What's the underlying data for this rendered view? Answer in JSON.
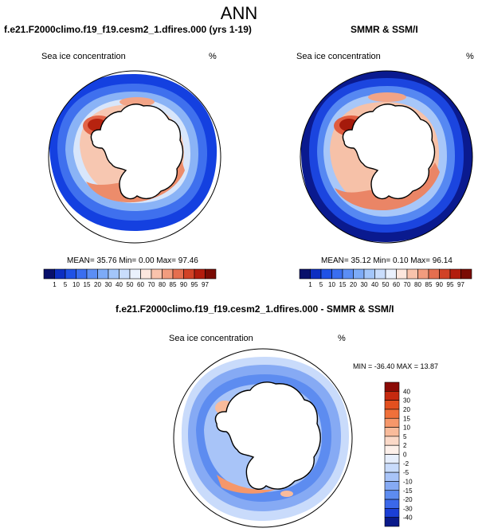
{
  "page": {
    "title": "ANN"
  },
  "panels": {
    "model": {
      "title": "f.e21.F2000climo.f19_f19.cesm2_1.dfires.000 (yrs 1-19)",
      "variable": "Sea ice concentration",
      "units": "%",
      "stats": "MEAN= 35.76  Min=  0.00  Max= 97.46"
    },
    "obs": {
      "title": "SMMR & SSM/I",
      "variable": "Sea ice concentration",
      "units": "%",
      "stats": "MEAN= 35.12  Min=  0.10  Max= 96.14"
    },
    "diff": {
      "title": "f.e21.F2000climo.f19_f19.cesm2_1.dfires.000 - SMMR & SSM/I",
      "variable": "Sea ice concentration",
      "units": "%",
      "stats": "MIN = -36.40 MAX =  13.87"
    }
  },
  "chart_data": [
    {
      "type": "heatmap",
      "projection": "south polar stereographic",
      "title": "f.e21.F2000climo.f19_f19.cesm2_1.dfires.000 (yrs 1-19)",
      "variable": "Sea ice concentration",
      "units": "%",
      "mean": 35.76,
      "min": 0.0,
      "max": 97.46,
      "colorbar_levels": [
        "1",
        "5",
        "10",
        "15",
        "20",
        "30",
        "40",
        "50",
        "60",
        "70",
        "80",
        "85",
        "90",
        "95",
        "97"
      ],
      "colorbar_colors": [
        "#08106b",
        "#0c2fc2",
        "#1f52e6",
        "#3a6ef0",
        "#5b8ef5",
        "#7dabf7",
        "#a3c6fa",
        "#c9ddfc",
        "#eaf1fd",
        "#fde7de",
        "#f9c3ac",
        "#f29c7e",
        "#e56e4f",
        "#d14226",
        "#b21c0d",
        "#7a0b04"
      ]
    },
    {
      "type": "heatmap",
      "projection": "south polar stereographic",
      "title": "SMMR & SSM/I",
      "variable": "Sea ice concentration",
      "units": "%",
      "mean": 35.12,
      "min": 0.1,
      "max": 96.14,
      "colorbar_levels": [
        "1",
        "5",
        "10",
        "15",
        "20",
        "30",
        "40",
        "50",
        "60",
        "70",
        "80",
        "85",
        "90",
        "95",
        "97"
      ],
      "colorbar_colors": [
        "#08106b",
        "#0c2fc2",
        "#1f52e6",
        "#3a6ef0",
        "#5b8ef5",
        "#7dabf7",
        "#a3c6fa",
        "#c9ddfc",
        "#eaf1fd",
        "#fde7de",
        "#f9c3ac",
        "#f29c7e",
        "#e56e4f",
        "#d14226",
        "#b21c0d",
        "#7a0b04"
      ]
    },
    {
      "type": "heatmap",
      "projection": "south polar stereographic",
      "title": "f.e21.F2000climo.f19_f19.cesm2_1.dfires.000 - SMMR & SSM/I",
      "variable": "Sea ice concentration",
      "units": "%",
      "min": -36.4,
      "max": 13.87,
      "colorbar_levels": [
        "40",
        "30",
        "20",
        "15",
        "10",
        "5",
        "2",
        "0",
        "-2",
        "-5",
        "-10",
        "-15",
        "-20",
        "-30",
        "-40"
      ],
      "colorbar_colors": [
        "#8b0a05",
        "#c62a10",
        "#e2501f",
        "#f0703a",
        "#f6976a",
        "#f9bb9b",
        "#fbd9c8",
        "#fdf0ea",
        "#e6eefc",
        "#c8dbfb",
        "#a8c4f8",
        "#86aaf4",
        "#5d8cf0",
        "#3b68ea",
        "#1b3fd6",
        "#0a1a8a"
      ]
    }
  ]
}
